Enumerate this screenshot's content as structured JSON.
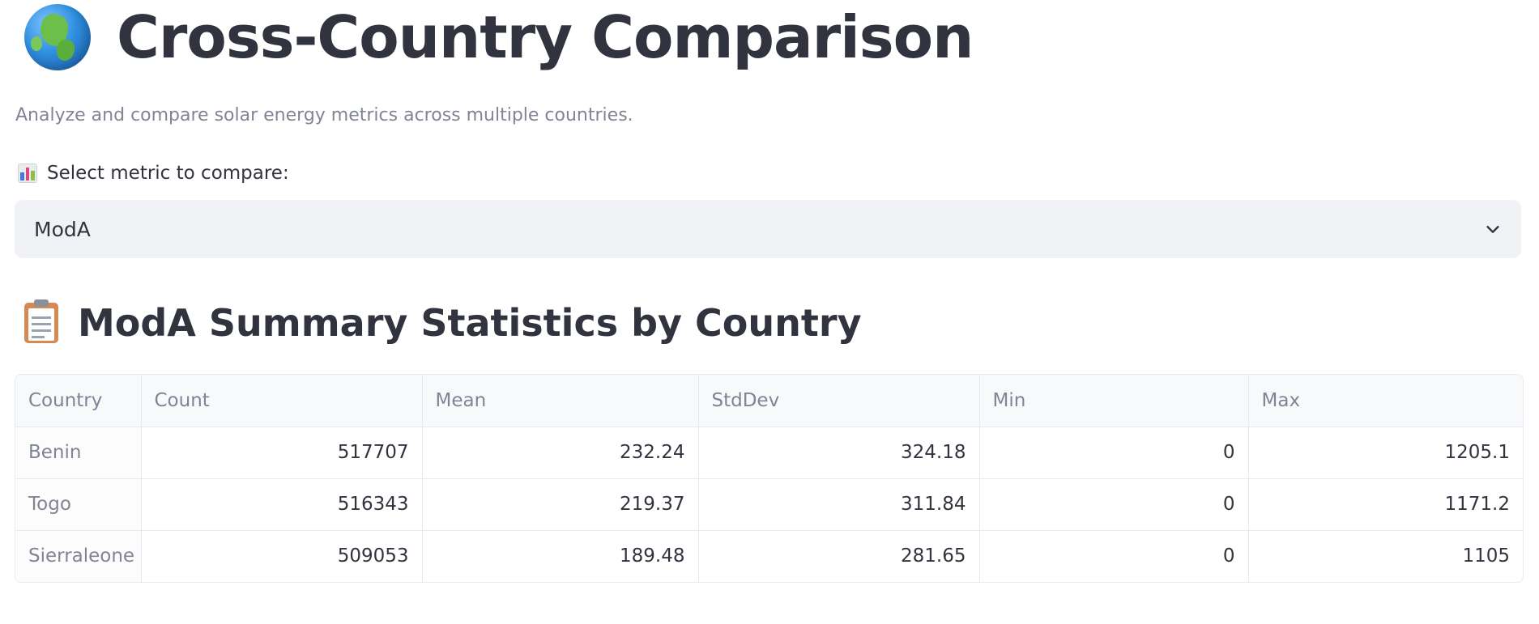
{
  "header": {
    "title": "Cross-Country Comparison",
    "subtitle": "Analyze and compare solar energy metrics across multiple countries.",
    "title_icon": "globe-icon"
  },
  "metric_select": {
    "label": "Select metric to compare:",
    "label_icon": "bar-chart-icon",
    "value": "ModA",
    "chevron_icon": "chevron-down-icon"
  },
  "summary": {
    "title": "ModA Summary Statistics by Country",
    "title_icon": "clipboard-icon",
    "columns": [
      "Country",
      "Count",
      "Mean",
      "StdDev",
      "Min",
      "Max"
    ],
    "rows": [
      [
        "Benin",
        "517707",
        "232.24",
        "324.18",
        "0",
        "1205.1"
      ],
      [
        "Togo",
        "516343",
        "219.37",
        "311.84",
        "0",
        "1171.2"
      ],
      [
        "Sierraleone",
        "509053",
        "189.48",
        "281.65",
        "0",
        "1105"
      ]
    ]
  },
  "colors": {
    "text": "#31333f",
    "muted": "#808495",
    "select_bg": "#f0f2f6",
    "border": "#e6e9ef"
  }
}
